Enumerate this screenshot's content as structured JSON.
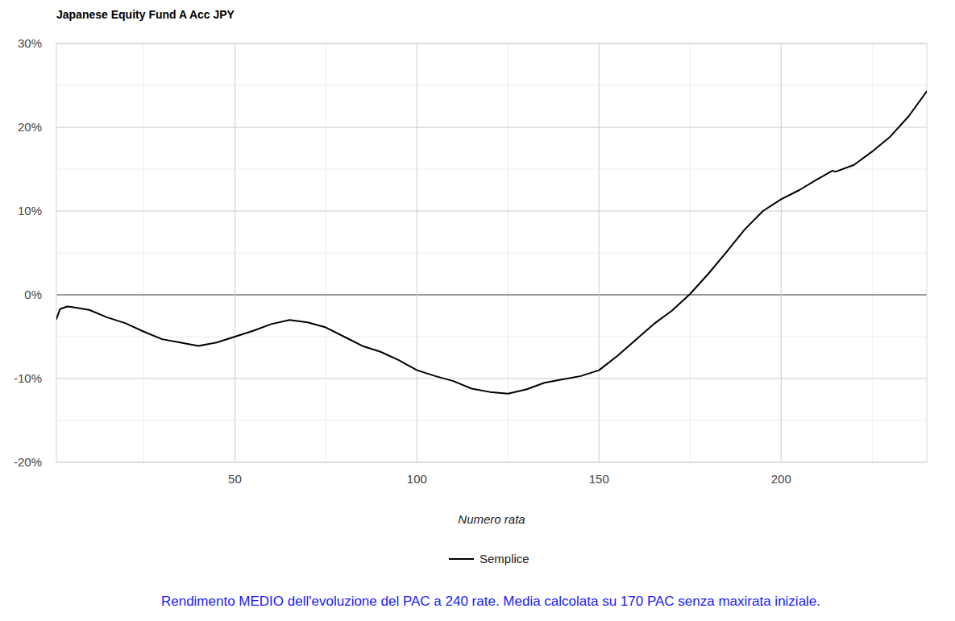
{
  "chart_data": {
    "type": "line",
    "title": "Japanese Equity Fund A Acc JPY",
    "x_label": "Numero rata",
    "annotations": [
      "Rendimento MEDIO dell'evoluzione del PAC a 240 rate. Media calcolata su 170 PAC senza maxirata iniziale."
    ],
    "x": [
      1,
      2,
      4,
      5,
      10,
      15,
      20,
      25,
      30,
      35,
      40,
      45,
      50,
      55,
      60,
      65,
      70,
      75,
      80,
      85,
      90,
      95,
      100,
      105,
      110,
      115,
      120,
      125,
      130,
      135,
      140,
      145,
      150,
      155,
      160,
      165,
      170,
      175,
      180,
      185,
      190,
      195,
      200,
      205,
      210,
      214,
      215,
      220,
      225,
      230,
      235,
      240
    ],
    "series": [
      {
        "name": "Semplice",
        "color": "#000000",
        "values": [
          -2.9,
          -1.7,
          -1.4,
          -1.45,
          -1.8,
          -2.7,
          -3.4,
          -4.4,
          -5.3,
          -5.7,
          -6.1,
          -5.7,
          -5.0,
          -4.3,
          -3.5,
          -3.0,
          -3.3,
          -3.9,
          -5.0,
          -6.1,
          -6.8,
          -7.8,
          -9.0,
          -9.7,
          -10.3,
          -11.2,
          -11.6,
          -11.8,
          -11.3,
          -10.5,
          -10.1,
          -9.7,
          -9.0,
          -7.3,
          -5.4,
          -3.5,
          -1.9,
          0.1,
          2.5,
          5.1,
          7.8,
          10.0,
          11.4,
          12.5,
          13.8,
          14.8,
          14.7,
          15.5,
          17.1,
          18.9,
          21.3,
          24.3
        ]
      }
    ],
    "xlim": [
      1,
      240
    ],
    "ylim": [
      -20,
      30
    ],
    "xticks": [
      50,
      100,
      150,
      200
    ],
    "yticks": [
      {
        "value": -20,
        "label": "-20%"
      },
      {
        "value": -10,
        "label": "-10%"
      },
      {
        "value": 0,
        "label": "0%"
      },
      {
        "value": 10,
        "label": "10%"
      },
      {
        "value": 20,
        "label": "20%"
      },
      {
        "value": 30,
        "label": "30%"
      }
    ],
    "grid": true,
    "legend": "bottom"
  }
}
